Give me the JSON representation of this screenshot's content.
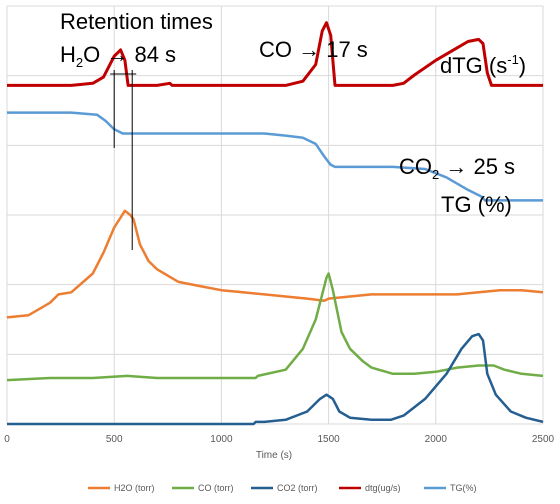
{
  "chart_data": {
    "type": "line",
    "xlabel": "Time (s)",
    "xlim": [
      0,
      2500
    ],
    "x_ticks": [
      "0",
      "500",
      "1000",
      "1500",
      "2000",
      "2500"
    ],
    "grid": "vertical and horizontal gridlines",
    "legend_position": "bottom",
    "series": [
      {
        "name": "H2O (torr)",
        "color": "#ED7D31",
        "points": [
          [
            0,
            0.255
          ],
          [
            100,
            0.26
          ],
          [
            200,
            0.29
          ],
          [
            240,
            0.31
          ],
          [
            300,
            0.315
          ],
          [
            400,
            0.36
          ],
          [
            450,
            0.41
          ],
          [
            500,
            0.47
          ],
          [
            550,
            0.51
          ],
          [
            575,
            0.5
          ],
          [
            590,
            0.49
          ],
          [
            620,
            0.43
          ],
          [
            660,
            0.39
          ],
          [
            700,
            0.37
          ],
          [
            800,
            0.34
          ],
          [
            900,
            0.33
          ],
          [
            1000,
            0.32
          ],
          [
            1100,
            0.315
          ],
          [
            1200,
            0.31
          ],
          [
            1300,
            0.305
          ],
          [
            1400,
            0.3
          ],
          [
            1480,
            0.295
          ],
          [
            1500,
            0.3
          ],
          [
            1600,
            0.305
          ],
          [
            1700,
            0.31
          ],
          [
            1800,
            0.31
          ],
          [
            1900,
            0.31
          ],
          [
            2000,
            0.31
          ],
          [
            2100,
            0.31
          ],
          [
            2200,
            0.315
          ],
          [
            2300,
            0.32
          ],
          [
            2400,
            0.32
          ],
          [
            2500,
            0.315
          ]
        ]
      },
      {
        "name": "CO (torr)",
        "color": "#70AD47",
        "points": [
          [
            0,
            0.105
          ],
          [
            200,
            0.11
          ],
          [
            400,
            0.11
          ],
          [
            560,
            0.115
          ],
          [
            700,
            0.11
          ],
          [
            900,
            0.11
          ],
          [
            1100,
            0.11
          ],
          [
            1160,
            0.11
          ],
          [
            1170,
            0.115
          ],
          [
            1300,
            0.13
          ],
          [
            1380,
            0.18
          ],
          [
            1440,
            0.25
          ],
          [
            1470,
            0.31
          ],
          [
            1490,
            0.35
          ],
          [
            1500,
            0.36
          ],
          [
            1520,
            0.32
          ],
          [
            1560,
            0.22
          ],
          [
            1600,
            0.18
          ],
          [
            1660,
            0.15
          ],
          [
            1700,
            0.135
          ],
          [
            1800,
            0.12
          ],
          [
            1900,
            0.12
          ],
          [
            2000,
            0.125
          ],
          [
            2100,
            0.135
          ],
          [
            2200,
            0.14
          ],
          [
            2270,
            0.14
          ],
          [
            2320,
            0.13
          ],
          [
            2400,
            0.12
          ],
          [
            2500,
            0.115
          ]
        ]
      },
      {
        "name": "CO2 (torr)",
        "color": "#255E91",
        "points": [
          [
            0,
            0.0
          ],
          [
            300,
            0.0
          ],
          [
            600,
            0.0
          ],
          [
            900,
            0.0
          ],
          [
            1150,
            0.0
          ],
          [
            1160,
            0.005
          ],
          [
            1200,
            0.005
          ],
          [
            1300,
            0.01
          ],
          [
            1400,
            0.03
          ],
          [
            1460,
            0.06
          ],
          [
            1490,
            0.07
          ],
          [
            1520,
            0.06
          ],
          [
            1550,
            0.03
          ],
          [
            1600,
            0.015
          ],
          [
            1700,
            0.01
          ],
          [
            1790,
            0.01
          ],
          [
            1850,
            0.02
          ],
          [
            1950,
            0.06
          ],
          [
            2050,
            0.12
          ],
          [
            2120,
            0.18
          ],
          [
            2170,
            0.21
          ],
          [
            2200,
            0.215
          ],
          [
            2220,
            0.2
          ],
          [
            2240,
            0.12
          ],
          [
            2280,
            0.07
          ],
          [
            2350,
            0.03
          ],
          [
            2420,
            0.015
          ],
          [
            2500,
            0.005
          ]
        ]
      },
      {
        "name": "dtg(ug/s)",
        "color": "#C00000",
        "points": [
          [
            0,
            0.81
          ],
          [
            200,
            0.81
          ],
          [
            300,
            0.81
          ],
          [
            400,
            0.815
          ],
          [
            450,
            0.83
          ],
          [
            500,
            0.88
          ],
          [
            530,
            0.895
          ],
          [
            550,
            0.87
          ],
          [
            565,
            0.81
          ],
          [
            600,
            0.81
          ],
          [
            700,
            0.81
          ],
          [
            760,
            0.815
          ],
          [
            770,
            0.81
          ],
          [
            900,
            0.81
          ],
          [
            1100,
            0.81
          ],
          [
            1300,
            0.81
          ],
          [
            1380,
            0.82
          ],
          [
            1440,
            0.86
          ],
          [
            1470,
            0.94
          ],
          [
            1490,
            0.96
          ],
          [
            1510,
            0.93
          ],
          [
            1530,
            0.81
          ],
          [
            1600,
            0.81
          ],
          [
            1800,
            0.81
          ],
          [
            1850,
            0.815
          ],
          [
            1900,
            0.835
          ],
          [
            2000,
            0.87
          ],
          [
            2100,
            0.9
          ],
          [
            2150,
            0.915
          ],
          [
            2200,
            0.92
          ],
          [
            2220,
            0.91
          ],
          [
            2240,
            0.84
          ],
          [
            2260,
            0.81
          ],
          [
            2400,
            0.81
          ],
          [
            2500,
            0.81
          ]
        ]
      },
      {
        "name": "TG(%)",
        "color": "#5B9BD5",
        "points": [
          [
            0,
            0.745
          ],
          [
            300,
            0.745
          ],
          [
            420,
            0.74
          ],
          [
            460,
            0.725
          ],
          [
            500,
            0.705
          ],
          [
            540,
            0.695
          ],
          [
            600,
            0.695
          ],
          [
            800,
            0.695
          ],
          [
            1000,
            0.695
          ],
          [
            1200,
            0.695
          ],
          [
            1300,
            0.69
          ],
          [
            1380,
            0.685
          ],
          [
            1440,
            0.67
          ],
          [
            1480,
            0.64
          ],
          [
            1510,
            0.62
          ],
          [
            1530,
            0.615
          ],
          [
            1600,
            0.615
          ],
          [
            1800,
            0.615
          ],
          [
            1950,
            0.61
          ],
          [
            2050,
            0.59
          ],
          [
            2150,
            0.56
          ],
          [
            2210,
            0.545
          ],
          [
            2230,
            0.535
          ],
          [
            2300,
            0.535
          ],
          [
            2400,
            0.535
          ],
          [
            2500,
            0.535
          ]
        ]
      }
    ],
    "annotations": {
      "retention_title": "Retention times",
      "h2o_formula": "H",
      "h2o_sub": "2",
      "h2o_tail": "O → 84 s",
      "co": "CO → 17 s",
      "dtg_main": "dTG (s",
      "dtg_sup": "-1",
      "dtg_close": ")",
      "co2_formula": "CO",
      "co2_sub": "2",
      "co2_tail": " → 25 s",
      "tg": "TG (%)"
    },
    "h2o_retention_markers": {
      "x_start": 500,
      "x_end": 584
    }
  }
}
